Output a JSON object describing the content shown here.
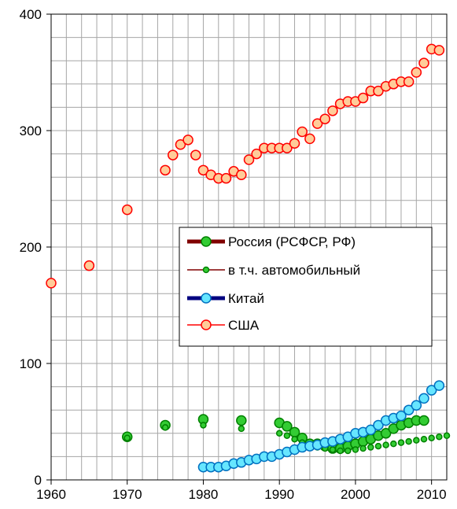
{
  "chart_data": {
    "type": "line",
    "title": "",
    "xlabel": "",
    "ylabel": "",
    "xlim": [
      1960,
      2012
    ],
    "ylim": [
      0,
      400
    ],
    "x_ticks": [
      1960,
      1970,
      1980,
      1990,
      2000,
      2010
    ],
    "y_ticks": [
      0,
      100,
      200,
      300,
      400
    ],
    "x_tick_labels": [
      "1960",
      "1970",
      "1980",
      "1990",
      "2000",
      "2010"
    ],
    "y_tick_labels": [
      "0",
      "100",
      "200",
      "300",
      "400"
    ],
    "grid": true,
    "legend_position": "center-right",
    "series": [
      {
        "name": "Россия (РСФСР, РФ)",
        "line_color": "#800000",
        "marker_fill": "#33cc33",
        "marker_stroke": "#008000",
        "marker_size": "large",
        "x": [
          1970,
          1975,
          1980,
          1985,
          1990,
          1991,
          1992,
          1993,
          1994,
          1995,
          1996,
          1997,
          1998,
          1999,
          2000,
          2001,
          2002,
          2003,
          2004,
          2005,
          2006,
          2007,
          2008,
          2009
        ],
        "y": [
          37,
          47,
          52,
          51,
          49,
          46,
          41,
          36,
          31,
          31,
          29,
          27,
          27,
          29,
          31,
          33,
          35,
          38,
          40,
          44,
          47,
          49,
          51,
          51
        ]
      },
      {
        "name": "в т.ч. автомобильный",
        "line_color": "#800000",
        "marker_fill": "#33cc33",
        "marker_stroke": "#008000",
        "marker_size": "small",
        "x": [
          1970,
          1975,
          1980,
          1985,
          1990,
          1991,
          1992,
          1993,
          1994,
          1995,
          1996,
          1997,
          1998,
          1999,
          2000,
          2001,
          2002,
          2003,
          2004,
          2005,
          2006,
          2007,
          2008,
          2009,
          2010,
          2011,
          2012
        ],
        "y": [
          36,
          45,
          47,
          44,
          40,
          38,
          35,
          32,
          30,
          28,
          27,
          26,
          25,
          25,
          26,
          27,
          28,
          29,
          30,
          31,
          32,
          33,
          34,
          35,
          36,
          37,
          38
        ]
      },
      {
        "name": "Китай",
        "line_color": "#000080",
        "marker_fill": "#66e6ff",
        "marker_stroke": "#0070c0",
        "marker_size": "large",
        "x": [
          1980,
          1981,
          1982,
          1983,
          1984,
          1985,
          1986,
          1987,
          1988,
          1989,
          1990,
          1991,
          1992,
          1993,
          1994,
          1995,
          1996,
          1997,
          1998,
          1999,
          2000,
          2001,
          2002,
          2003,
          2004,
          2005,
          2006,
          2007,
          2008,
          2009,
          2010,
          2011
        ],
        "y": [
          11,
          11,
          11,
          12,
          14,
          15,
          17,
          18,
          20,
          20,
          22,
          24,
          26,
          28,
          29,
          30,
          32,
          33,
          35,
          37,
          40,
          41,
          43,
          47,
          51,
          53,
          55,
          60,
          64,
          70,
          77,
          81
        ]
      },
      {
        "name": "США",
        "line_color": "#ff0000",
        "marker_fill": "#ffcc99",
        "marker_stroke": "#ff0000",
        "marker_size": "large",
        "x": [
          1960,
          1965,
          1970,
          1975,
          1976,
          1977,
          1978,
          1979,
          1980,
          1981,
          1982,
          1983,
          1984,
          1985,
          1986,
          1987,
          1988,
          1989,
          1990,
          1991,
          1992,
          1993,
          1994,
          1995,
          1996,
          1997,
          1998,
          1999,
          2000,
          2001,
          2002,
          2003,
          2004,
          2005,
          2006,
          2007,
          2008,
          2009,
          2010,
          2011
        ],
        "y": [
          169,
          184,
          232,
          266,
          279,
          288,
          292,
          279,
          266,
          262,
          259,
          259,
          265,
          262,
          275,
          280,
          285,
          285,
          285,
          285,
          289,
          299,
          293,
          306,
          310,
          317,
          323,
          325,
          325,
          328,
          334,
          334,
          338,
          340,
          342,
          342,
          350,
          358,
          370,
          369
        ]
      }
    ]
  }
}
